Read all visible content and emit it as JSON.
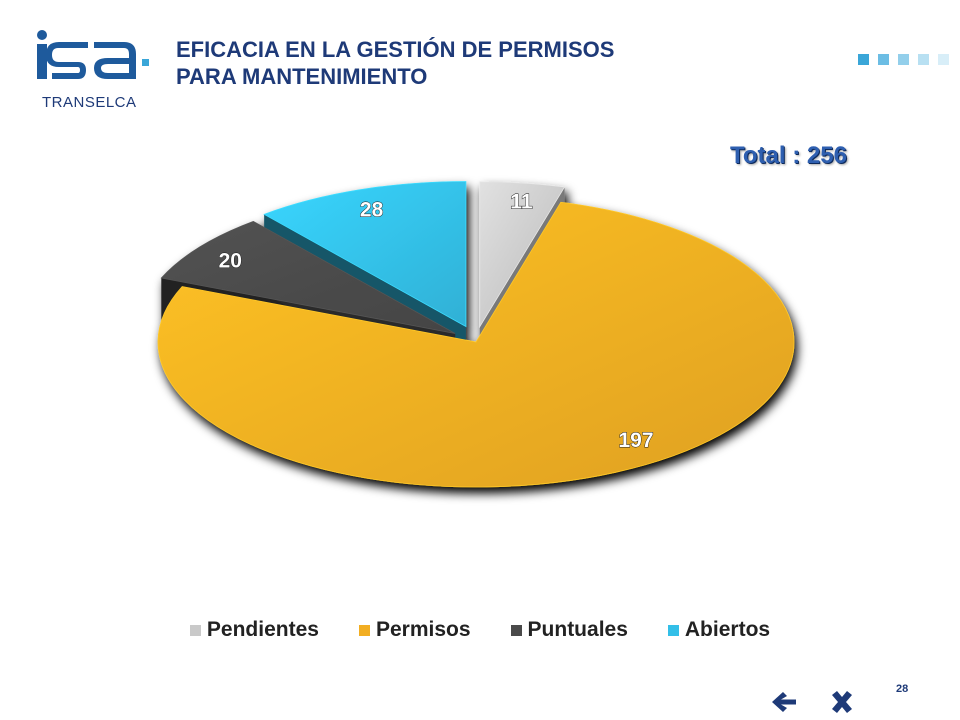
{
  "logo": {
    "brand": "isa",
    "subtitle": "TRANSELCA",
    "icon": "isa-transelca-logo"
  },
  "header": {
    "title_line1": "EFICACIA EN LA GESTIÓN DE PERMISOS",
    "title_line2": "PARA MANTENIMIENTO"
  },
  "total_label": "Total : 256",
  "page_number": "28",
  "navigation": {
    "back_icon": "arrow-left-icon",
    "close_icon": "close-icon"
  },
  "colors": {
    "title": "#1e3a78",
    "accent": "#3aa6d8",
    "total": "#2e5fb0",
    "Pendientes": "#c9c9c9",
    "Permisos": "#f2ae22",
    "Puntuales": "#4a4a4a",
    "Abiertos": "#33bfe8"
  },
  "chart_data": {
    "type": "pie",
    "style": "3d-exploded",
    "categories": [
      "Pendientes",
      "Permisos",
      "Puntuales",
      "Abiertos"
    ],
    "values": [
      11,
      197,
      20,
      28
    ],
    "data_labels": [
      "11",
      "197",
      "20",
      "28"
    ],
    "total": 256,
    "legend_position": "bottom"
  }
}
